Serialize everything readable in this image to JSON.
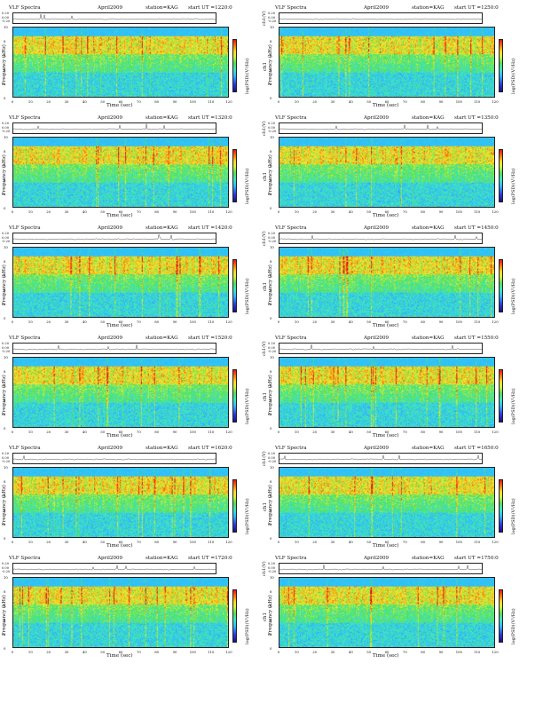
{
  "common": {
    "title": "VLF Spectra",
    "date": "April2009",
    "station": "station=KAG",
    "ch1_label": "ch1(V)",
    "ch1_ticks": [
      "0.20",
      "0.00",
      "-0.20"
    ],
    "freq_label": "Frequency (kHz)",
    "freq_ch_label": "ch1",
    "freq_ticks": [
      "0",
      "2",
      "4",
      "6",
      "8",
      "10"
    ],
    "time_label": "Time (sec)",
    "time_ticks": [
      "0",
      "10",
      "20",
      "30",
      "40",
      "50",
      "60",
      "70",
      "80",
      "90",
      "100",
      "110",
      "120"
    ],
    "cbar_label": "log(PSD)(V²/Hz)"
  },
  "chart_data": [
    {
      "type": "heatmap",
      "start_ut": "start UT =1220:0",
      "xlim": [
        0,
        120
      ],
      "ylim": [
        0,
        10
      ]
    },
    {
      "type": "heatmap",
      "start_ut": "start UT =1250:0",
      "xlim": [
        0,
        120
      ],
      "ylim": [
        0,
        10
      ]
    },
    {
      "type": "heatmap",
      "start_ut": "start UT =1320:0",
      "xlim": [
        0,
        120
      ],
      "ylim": [
        0,
        10
      ]
    },
    {
      "type": "heatmap",
      "start_ut": "start UT =1350:0",
      "xlim": [
        0,
        120
      ],
      "ylim": [
        0,
        10
      ]
    },
    {
      "type": "heatmap",
      "start_ut": "start UT =1420:0",
      "xlim": [
        0,
        120
      ],
      "ylim": [
        0,
        10
      ]
    },
    {
      "type": "heatmap",
      "start_ut": "start UT =1450:0",
      "xlim": [
        0,
        120
      ],
      "ylim": [
        0,
        10
      ]
    },
    {
      "type": "heatmap",
      "start_ut": "start UT =1520:0",
      "xlim": [
        0,
        120
      ],
      "ylim": [
        0,
        10
      ]
    },
    {
      "type": "heatmap",
      "start_ut": "start UT =1550:0",
      "xlim": [
        0,
        120
      ],
      "ylim": [
        0,
        10
      ]
    },
    {
      "type": "heatmap",
      "start_ut": "start UT =1620:0",
      "xlim": [
        0,
        120
      ],
      "ylim": [
        0,
        10
      ]
    },
    {
      "type": "heatmap",
      "start_ut": "start UT =1650:0",
      "xlim": [
        0,
        120
      ],
      "ylim": [
        0,
        10
      ]
    },
    {
      "type": "heatmap",
      "start_ut": "start UT =1720:0",
      "xlim": [
        0,
        120
      ],
      "ylim": [
        0,
        10
      ]
    },
    {
      "type": "heatmap",
      "start_ut": "start UT =1750:0",
      "xlim": [
        0,
        120
      ],
      "ylim": [
        0,
        10
      ]
    }
  ]
}
